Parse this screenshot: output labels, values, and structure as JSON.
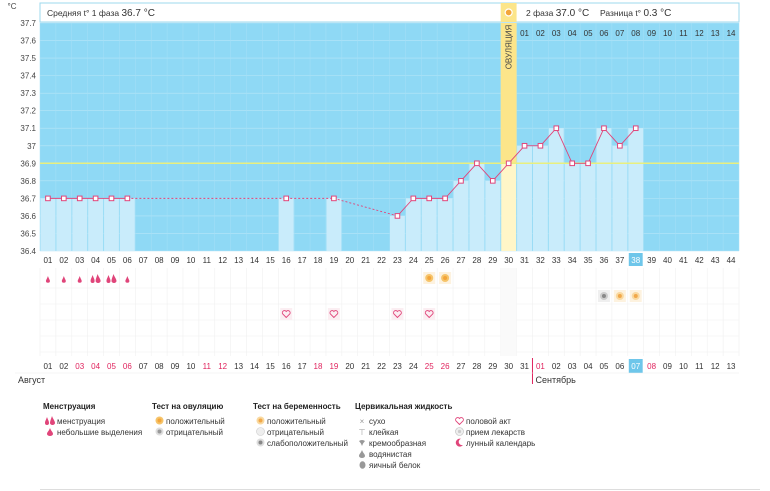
{
  "chart_data": {
    "type": "line",
    "unit_label": "°C",
    "ylim": [
      36.4,
      37.7
    ],
    "y_ticks": [
      "36.4",
      "36.5",
      "36.6",
      "36.7",
      "36.8",
      "36.9",
      "37",
      "37.1",
      "37.2",
      "37.3",
      "37.4",
      "37.5",
      "37.6",
      "37.7"
    ],
    "coverline": 36.9,
    "ovulation_label": "ОВУЛЯЦИЯ",
    "ovulation_day": 30,
    "phase1_text": "Средняя t° 1 фаза",
    "phase1_avg": "36.7 °C",
    "phase2_text": "2 фаза",
    "phase2_avg": "37.0 °C",
    "diff_text": "Разница t°",
    "diff_value": "0.3 °C",
    "phase2_day_labels": [
      "01",
      "02",
      "03",
      "04",
      "05",
      "06",
      "07",
      "08",
      "09",
      "10",
      "11",
      "12",
      "13",
      "14"
    ],
    "cycle_days": [
      "01",
      "02",
      "03",
      "04",
      "05",
      "06",
      "07",
      "08",
      "09",
      "10",
      "11",
      "12",
      "13",
      "14",
      "15",
      "16",
      "17",
      "18",
      "19",
      "20",
      "21",
      "22",
      "23",
      "24",
      "25",
      "26",
      "27",
      "28",
      "29",
      "30",
      "31",
      "32",
      "33",
      "34",
      "35",
      "36",
      "37",
      "38",
      "39",
      "40",
      "41",
      "42",
      "43",
      "44"
    ],
    "current_cycle_day": 38,
    "temperatures": [
      {
        "day": 1,
        "t": 36.7
      },
      {
        "day": 2,
        "t": 36.7
      },
      {
        "day": 3,
        "t": 36.7
      },
      {
        "day": 4,
        "t": 36.7
      },
      {
        "day": 5,
        "t": 36.7
      },
      {
        "day": 6,
        "t": 36.7
      },
      {
        "day": 16,
        "t": 36.7
      },
      {
        "day": 19,
        "t": 36.7
      },
      {
        "day": 23,
        "t": 36.6
      },
      {
        "day": 24,
        "t": 36.7
      },
      {
        "day": 25,
        "t": 36.7
      },
      {
        "day": 26,
        "t": 36.7
      },
      {
        "day": 27,
        "t": 36.8
      },
      {
        "day": 28,
        "t": 36.9
      },
      {
        "day": 29,
        "t": 36.8
      },
      {
        "day": 30,
        "t": 36.9
      },
      {
        "day": 31,
        "t": 37.0
      },
      {
        "day": 32,
        "t": 37.0
      },
      {
        "day": 33,
        "t": 37.1
      },
      {
        "day": 34,
        "t": 36.9
      },
      {
        "day": 35,
        "t": 36.9
      },
      {
        "day": 36,
        "t": 37.1
      },
      {
        "day": 37,
        "t": 37.0
      },
      {
        "day": 38,
        "t": 37.1
      }
    ],
    "menstruation": [
      {
        "day": 1,
        "kind": "light"
      },
      {
        "day": 2,
        "kind": "light"
      },
      {
        "day": 3,
        "kind": "light"
      },
      {
        "day": 4,
        "kind": "heavy"
      },
      {
        "day": 5,
        "kind": "heavy"
      },
      {
        "day": 6,
        "kind": "light"
      }
    ],
    "ovulation_tests": [
      25,
      26
    ],
    "pregnancy_tests": [
      {
        "day": 36,
        "kind": "weak"
      },
      {
        "day": 37,
        "kind": "positive"
      },
      {
        "day": 38,
        "kind": "positive"
      }
    ],
    "intercourse_days": [
      16,
      19,
      23,
      25
    ],
    "calendar_dates": [
      "01",
      "02",
      "03",
      "04",
      "05",
      "06",
      "07",
      "08",
      "09",
      "10",
      "11",
      "12",
      "13",
      "14",
      "15",
      "16",
      "17",
      "18",
      "19",
      "20",
      "21",
      "22",
      "23",
      "24",
      "25",
      "26",
      "27",
      "28",
      "29",
      "30",
      "31",
      "01",
      "02",
      "03",
      "04",
      "05",
      "06",
      "07",
      "08",
      "09",
      "10",
      "11",
      "12",
      "13"
    ],
    "red_dates_index": [
      3,
      4,
      10,
      11,
      17,
      18,
      24,
      25,
      31,
      38
    ],
    "pink_dates_index": [
      2,
      5
    ],
    "today_index": 37,
    "month_start_index": 31,
    "month1": "Август",
    "month2": "Сентябрь"
  },
  "legend": {
    "menstruation": {
      "title": "Менструация",
      "items": [
        {
          "icon": "heavy-drop-icon",
          "label": "менструация"
        },
        {
          "icon": "light-drop-icon",
          "label": "небольшие выделения"
        }
      ]
    },
    "ovulation_test": {
      "title": "Тест на овуляцию",
      "items": [
        {
          "icon": "sun-positive-icon",
          "label": "положительный"
        },
        {
          "icon": "sun-negative-icon",
          "label": "отрицательный"
        }
      ]
    },
    "pregnancy_test": {
      "title": "Тест на беременность",
      "items": [
        {
          "icon": "preg-positive-icon",
          "label": "положительный"
        },
        {
          "icon": "preg-negative-icon",
          "label": "отрицательный"
        },
        {
          "icon": "preg-weak-icon",
          "label": "слабоположительный"
        }
      ]
    },
    "cervical": {
      "title": "Цервикальная жидкость",
      "items": [
        {
          "icon": "dry-icon",
          "label": "сухо"
        },
        {
          "icon": "sticky-icon",
          "label": "клейкая"
        },
        {
          "icon": "creamy-icon",
          "label": "кремообразная"
        },
        {
          "icon": "watery-icon",
          "label": "водянистая"
        },
        {
          "icon": "eggwhite-icon",
          "label": "яичный белок"
        }
      ]
    },
    "other": {
      "items": [
        {
          "icon": "heart-icon",
          "label": "половой акт"
        },
        {
          "icon": "pill-icon",
          "label": "прием лекарств"
        },
        {
          "icon": "moon-icon",
          "label": "лунный календарь"
        }
      ]
    }
  },
  "colors": {
    "plot_bg": "#8fd9f5",
    "bar": "#c9ecfb",
    "ovulation_band": "#fce58a",
    "ovulation_band_light": "#fff6c8",
    "coverline": "#e9ef7e",
    "temp_line": "#e0457a",
    "red_text": "#e0245e",
    "today": "#6ec6ea"
  }
}
